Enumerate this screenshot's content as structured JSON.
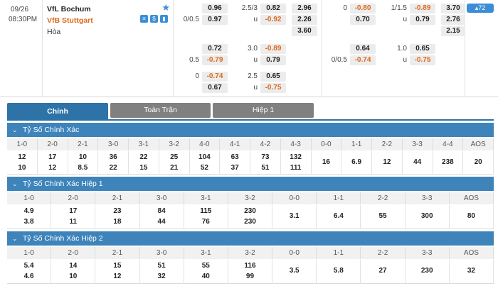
{
  "match": {
    "date": "09/26",
    "time": "08:30PM",
    "home": "VfL Bochum",
    "away": "VfB Stuttgart",
    "draw": "Hòa",
    "badge": "72",
    "ft": {
      "rows": [
        {
          "hcap": "",
          "home": "0.96",
          "line": "2.5/3",
          "over": "0.82",
          "x12": "2.96"
        },
        {
          "hcap": "0/0.5",
          "home": "0.97",
          "line": "u",
          "over": "-0.92",
          "x12": "2.26"
        },
        {
          "hcap": "",
          "home": "",
          "line": "",
          "over": "",
          "x12": "3.60"
        },
        {
          "hcap": "",
          "home": "0.72",
          "line": "3.0",
          "over": "-0.89",
          "x12": ""
        },
        {
          "hcap": "0.5",
          "home": "-0.79",
          "line": "u",
          "over": "0.79",
          "x12": ""
        },
        {
          "hcap": "0",
          "home": "-0.74",
          "line": "2.5",
          "over": "0.65",
          "x12": ""
        },
        {
          "hcap": "",
          "home": "0.67",
          "line": "u",
          "over": "-0.75",
          "x12": ""
        }
      ]
    },
    "ht": {
      "rows": [
        {
          "hcap": "0",
          "home": "-0.80",
          "line": "1/1.5",
          "over": "-0.89",
          "x12": "3.70"
        },
        {
          "hcap": "",
          "home": "0.70",
          "line": "u",
          "over": "0.79",
          "x12": "2.76"
        },
        {
          "hcap": "",
          "home": "",
          "line": "",
          "over": "",
          "x12": "2.15"
        },
        {
          "hcap": "",
          "home": "0.64",
          "line": "1.0",
          "over": "0.65",
          "x12": ""
        },
        {
          "hcap": "0/0.5",
          "home": "-0.74",
          "line": "u",
          "over": "-0.75",
          "x12": ""
        }
      ]
    }
  },
  "tabs": [
    "Chính",
    "Toàn Trận",
    "Hiệp 1"
  ],
  "sections": [
    {
      "title": "Tỷ Số Chính Xác",
      "headers": [
        "1-0",
        "2-0",
        "2-1",
        "3-0",
        "3-1",
        "3-2",
        "4-0",
        "4-1",
        "4-2",
        "4-3",
        "0-0",
        "1-1",
        "2-2",
        "3-3",
        "4-4",
        "AOS"
      ],
      "top": [
        "12",
        "17",
        "10",
        "36",
        "22",
        "25",
        "104",
        "63",
        "73",
        "132",
        "16",
        "6.9",
        "12",
        "44",
        "238",
        "20"
      ],
      "bottom": [
        "10",
        "12",
        "8.5",
        "22",
        "15",
        "21",
        "52",
        "37",
        "51",
        "111",
        "",
        "",
        "",
        "",
        "",
        ""
      ]
    },
    {
      "title": "Tỷ Số Chính Xác Hiệp 1",
      "headers": [
        "1-0",
        "2-0",
        "2-1",
        "3-0",
        "3-1",
        "3-2",
        "0-0",
        "1-1",
        "2-2",
        "3-3",
        "AOS"
      ],
      "top": [
        "4.9",
        "17",
        "23",
        "84",
        "115",
        "230",
        "3.1",
        "6.4",
        "55",
        "300",
        "80"
      ],
      "bottom": [
        "3.8",
        "11",
        "18",
        "44",
        "76",
        "230",
        "",
        "",
        "",
        "",
        ""
      ]
    },
    {
      "title": "Tỷ Số Chính Xác Hiệp 2",
      "headers": [
        "1-0",
        "2-0",
        "2-1",
        "3-0",
        "3-1",
        "3-2",
        "0-0",
        "1-1",
        "2-2",
        "3-3",
        "AOS"
      ],
      "top": [
        "5.4",
        "14",
        "15",
        "51",
        "55",
        "116",
        "3.5",
        "5.8",
        "27",
        "230",
        "32"
      ],
      "bottom": [
        "4.6",
        "10",
        "12",
        "32",
        "40",
        "99",
        "",
        "",
        "",
        "",
        ""
      ]
    }
  ],
  "colors": {
    "accent": "#3e84bb",
    "tab_active": "#2d73a8",
    "tab_inactive": "#808080",
    "negative": "#e06a1c"
  }
}
